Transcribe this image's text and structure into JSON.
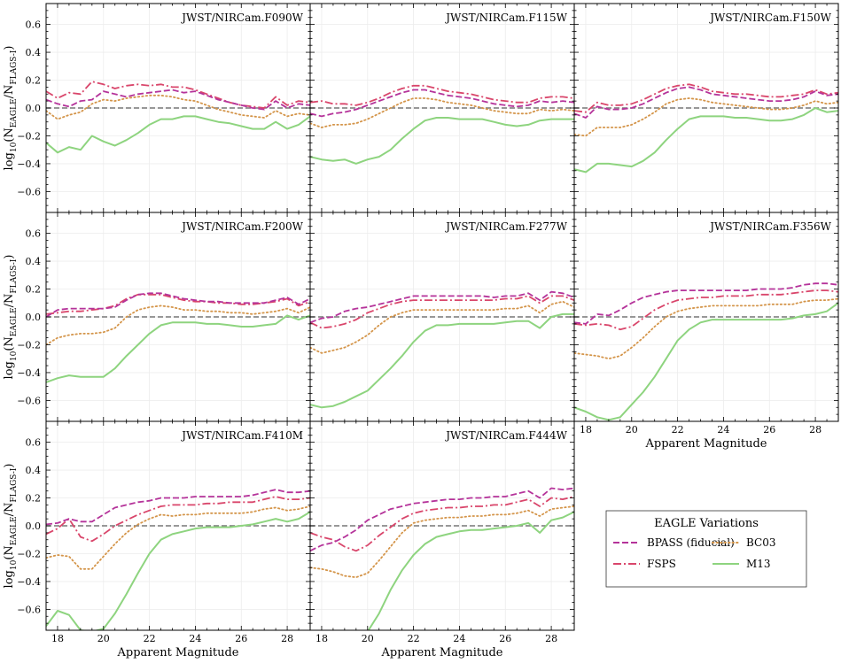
{
  "chart_data": {
    "type": "line",
    "xlabel": "Apparent Magnitude",
    "ylabel_main": "log",
    "ylabel_sub": "10",
    "ylabel_paren": "(N",
    "ylabel_sub1": "EAGLE",
    "ylabel_sep": "/N",
    "ylabel_sub2": "FLAGS-I",
    "ylabel_close": ")",
    "xlim": [
      17.5,
      29.0
    ],
    "ylim": [
      -0.75,
      0.75
    ],
    "xticks": [
      18,
      20,
      22,
      24,
      26,
      28
    ],
    "yticks": [
      -0.6,
      -0.4,
      -0.2,
      0.0,
      0.2,
      0.4,
      0.6
    ],
    "xtick_labels": [
      "18",
      "20",
      "22",
      "24",
      "26",
      "28"
    ],
    "ytick_labels": [
      "−0.6",
      "−0.4",
      "−0.2",
      "0.0",
      "0.2",
      "0.4",
      "0.6"
    ],
    "reference_line": 0.0,
    "legend": {
      "title": "EAGLE Variations",
      "entries": [
        {
          "key": "bpass",
          "label": "BPASS (fiducial)"
        },
        {
          "key": "bc03",
          "label": "BC03"
        },
        {
          "key": "fsps",
          "label": "FSPS"
        },
        {
          "key": "m13",
          "label": "M13"
        }
      ]
    },
    "series_styles": {
      "bpass": {
        "color": "#b5339a",
        "dash": "7,3"
      },
      "fsps": {
        "color": "#d9466b",
        "dash": "9,3,2,3"
      },
      "bc03": {
        "color": "#d4954a",
        "dash": "1.5,3"
      },
      "m13": {
        "color": "#8ed47f",
        "dash": ""
      }
    },
    "x": [
      17.5,
      18.0,
      18.5,
      19.0,
      19.5,
      20.0,
      20.5,
      21.0,
      21.5,
      22.0,
      22.5,
      23.0,
      23.5,
      24.0,
      24.5,
      25.0,
      25.5,
      26.0,
      26.5,
      27.0,
      27.5,
      28.0,
      28.5,
      29.0
    ],
    "panels": [
      {
        "title": "JWST/NIRCam.F090W",
        "bpass": [
          0.06,
          0.03,
          0.01,
          0.05,
          0.06,
          0.12,
          0.1,
          0.08,
          0.1,
          0.11,
          0.12,
          0.13,
          0.11,
          0.12,
          0.09,
          0.06,
          0.04,
          0.02,
          0.0,
          -0.01,
          0.05,
          0.0,
          0.03,
          0.02
        ],
        "fsps": [
          0.12,
          0.07,
          0.11,
          0.1,
          0.19,
          0.17,
          0.14,
          0.16,
          0.17,
          0.16,
          0.17,
          0.15,
          0.15,
          0.13,
          0.1,
          0.07,
          0.04,
          0.02,
          0.01,
          0.0,
          0.08,
          0.02,
          0.05,
          0.04
        ],
        "bc03": [
          -0.02,
          -0.08,
          -0.05,
          -0.03,
          0.03,
          0.06,
          0.05,
          0.07,
          0.08,
          0.09,
          0.09,
          0.08,
          0.06,
          0.05,
          0.02,
          -0.01,
          -0.03,
          -0.05,
          -0.06,
          -0.07,
          -0.02,
          -0.06,
          -0.04,
          -0.05
        ],
        "m13": [
          -0.25,
          -0.32,
          -0.28,
          -0.3,
          -0.2,
          -0.24,
          -0.27,
          -0.23,
          -0.18,
          -0.12,
          -0.08,
          -0.08,
          -0.06,
          -0.06,
          -0.08,
          -0.1,
          -0.11,
          -0.13,
          -0.15,
          -0.15,
          -0.1,
          -0.15,
          -0.12,
          -0.06
        ]
      },
      {
        "title": "JWST/NIRCam.F115W",
        "bpass": [
          -0.04,
          -0.06,
          -0.04,
          -0.03,
          -0.01,
          0.02,
          0.05,
          0.08,
          0.11,
          0.13,
          0.13,
          0.11,
          0.09,
          0.08,
          0.07,
          0.05,
          0.03,
          0.02,
          0.01,
          0.02,
          0.05,
          0.04,
          0.05,
          0.04
        ],
        "fsps": [
          0.04,
          0.05,
          0.03,
          0.03,
          0.02,
          0.04,
          0.07,
          0.11,
          0.14,
          0.16,
          0.16,
          0.14,
          0.12,
          0.11,
          0.1,
          0.08,
          0.06,
          0.05,
          0.04,
          0.04,
          0.07,
          0.08,
          0.08,
          0.07
        ],
        "bc03": [
          -0.11,
          -0.14,
          -0.12,
          -0.12,
          -0.11,
          -0.08,
          -0.04,
          0.0,
          0.04,
          0.07,
          0.07,
          0.06,
          0.04,
          0.03,
          0.02,
          0.0,
          -0.02,
          -0.03,
          -0.04,
          -0.04,
          -0.01,
          -0.02,
          -0.01,
          -0.02
        ],
        "m13": [
          -0.35,
          -0.37,
          -0.38,
          -0.37,
          -0.4,
          -0.37,
          -0.35,
          -0.3,
          -0.22,
          -0.15,
          -0.09,
          -0.07,
          -0.07,
          -0.08,
          -0.08,
          -0.08,
          -0.1,
          -0.12,
          -0.13,
          -0.12,
          -0.09,
          -0.08,
          -0.08,
          -0.08
        ]
      },
      {
        "title": "JWST/NIRCam.F150W",
        "bpass": [
          -0.04,
          -0.07,
          0.01,
          -0.01,
          -0.01,
          0.0,
          0.03,
          0.07,
          0.11,
          0.14,
          0.15,
          0.13,
          0.1,
          0.09,
          0.08,
          0.07,
          0.06,
          0.05,
          0.05,
          0.06,
          0.08,
          0.12,
          0.09,
          0.1
        ],
        "fsps": [
          -0.02,
          -0.03,
          0.04,
          0.02,
          0.02,
          0.03,
          0.06,
          0.1,
          0.14,
          0.16,
          0.17,
          0.15,
          0.12,
          0.11,
          0.1,
          0.1,
          0.09,
          0.08,
          0.08,
          0.09,
          0.1,
          0.13,
          0.1,
          0.11
        ],
        "bc03": [
          -0.19,
          -0.2,
          -0.14,
          -0.14,
          -0.14,
          -0.12,
          -0.08,
          -0.03,
          0.03,
          0.06,
          0.07,
          0.06,
          0.04,
          0.03,
          0.02,
          0.01,
          0.0,
          -0.01,
          -0.01,
          0.0,
          0.02,
          0.05,
          0.03,
          0.04
        ],
        "m13": [
          -0.44,
          -0.46,
          -0.4,
          -0.4,
          -0.41,
          -0.42,
          -0.38,
          -0.32,
          -0.23,
          -0.15,
          -0.08,
          -0.06,
          -0.06,
          -0.06,
          -0.07,
          -0.07,
          -0.08,
          -0.09,
          -0.09,
          -0.08,
          -0.05,
          0.0,
          -0.03,
          -0.02
        ]
      },
      {
        "title": "JWST/NIRCam.F200W",
        "bpass": [
          0.0,
          0.05,
          0.06,
          0.06,
          0.06,
          0.06,
          0.07,
          0.12,
          0.16,
          0.17,
          0.17,
          0.15,
          0.13,
          0.12,
          0.11,
          0.11,
          0.1,
          0.1,
          0.1,
          0.1,
          0.12,
          0.14,
          0.09,
          0.13
        ],
        "fsps": [
          0.02,
          0.03,
          0.04,
          0.04,
          0.05,
          0.06,
          0.08,
          0.13,
          0.16,
          0.16,
          0.16,
          0.14,
          0.12,
          0.11,
          0.11,
          0.1,
          0.1,
          0.09,
          0.09,
          0.1,
          0.11,
          0.13,
          0.08,
          0.11
        ],
        "bc03": [
          -0.2,
          -0.15,
          -0.13,
          -0.12,
          -0.12,
          -0.11,
          -0.08,
          0.0,
          0.05,
          0.07,
          0.08,
          0.07,
          0.05,
          0.05,
          0.04,
          0.04,
          0.03,
          0.03,
          0.02,
          0.03,
          0.04,
          0.06,
          0.03,
          0.07
        ],
        "m13": [
          -0.47,
          -0.44,
          -0.42,
          -0.43,
          -0.43,
          -0.43,
          -0.37,
          -0.28,
          -0.2,
          -0.12,
          -0.06,
          -0.04,
          -0.04,
          -0.04,
          -0.05,
          -0.05,
          -0.06,
          -0.07,
          -0.07,
          -0.06,
          -0.05,
          0.01,
          -0.02,
          0.01
        ]
      },
      {
        "title": "JWST/NIRCam.F277W",
        "bpass": [
          -0.04,
          -0.01,
          0.0,
          0.04,
          0.06,
          0.07,
          0.09,
          0.11,
          0.13,
          0.15,
          0.15,
          0.15,
          0.15,
          0.15,
          0.15,
          0.15,
          0.14,
          0.15,
          0.15,
          0.17,
          0.12,
          0.18,
          0.17,
          0.14
        ],
        "fsps": [
          -0.04,
          -0.08,
          -0.07,
          -0.05,
          -0.02,
          0.03,
          0.06,
          0.09,
          0.11,
          0.12,
          0.12,
          0.12,
          0.12,
          0.12,
          0.12,
          0.12,
          0.12,
          0.13,
          0.13,
          0.15,
          0.1,
          0.15,
          0.15,
          0.12
        ],
        "bc03": [
          -0.22,
          -0.26,
          -0.24,
          -0.22,
          -0.18,
          -0.13,
          -0.06,
          0.0,
          0.03,
          0.05,
          0.05,
          0.05,
          0.05,
          0.05,
          0.05,
          0.05,
          0.05,
          0.06,
          0.06,
          0.08,
          0.03,
          0.09,
          0.11,
          0.07
        ],
        "m13": [
          -0.63,
          -0.65,
          -0.64,
          -0.61,
          -0.57,
          -0.53,
          -0.45,
          -0.37,
          -0.28,
          -0.18,
          -0.1,
          -0.06,
          -0.06,
          -0.05,
          -0.05,
          -0.05,
          -0.05,
          -0.04,
          -0.03,
          -0.03,
          -0.08,
          0.0,
          0.02,
          0.02
        ]
      },
      {
        "title": "JWST/NIRCam.F356W",
        "bpass": [
          -0.04,
          -0.05,
          0.02,
          0.01,
          0.05,
          0.1,
          0.14,
          0.16,
          0.18,
          0.19,
          0.19,
          0.19,
          0.19,
          0.19,
          0.19,
          0.19,
          0.2,
          0.2,
          0.2,
          0.21,
          0.23,
          0.24,
          0.24,
          0.23
        ],
        "fsps": [
          -0.05,
          -0.06,
          -0.05,
          -0.06,
          -0.09,
          -0.07,
          -0.01,
          0.05,
          0.09,
          0.12,
          0.13,
          0.14,
          0.14,
          0.15,
          0.15,
          0.15,
          0.16,
          0.16,
          0.16,
          0.17,
          0.18,
          0.19,
          0.19,
          0.18
        ],
        "bc03": [
          -0.26,
          -0.27,
          -0.28,
          -0.3,
          -0.28,
          -0.22,
          -0.15,
          -0.07,
          0.0,
          0.04,
          0.06,
          0.07,
          0.08,
          0.08,
          0.08,
          0.08,
          0.08,
          0.09,
          0.09,
          0.09,
          0.11,
          0.12,
          0.12,
          0.13
        ],
        "m13": [
          -0.65,
          -0.68,
          -0.72,
          -0.74,
          -0.72,
          -0.63,
          -0.54,
          -0.43,
          -0.3,
          -0.17,
          -0.09,
          -0.04,
          -0.02,
          -0.02,
          -0.02,
          -0.02,
          -0.02,
          -0.02,
          -0.02,
          -0.01,
          0.01,
          0.02,
          0.04,
          0.1
        ]
      },
      {
        "title": "JWST/NIRCam.F410M",
        "bpass": [
          0.01,
          0.02,
          0.05,
          0.03,
          0.03,
          0.08,
          0.13,
          0.15,
          0.17,
          0.18,
          0.2,
          0.2,
          0.2,
          0.21,
          0.21,
          0.21,
          0.21,
          0.21,
          0.22,
          0.24,
          0.26,
          0.24,
          0.24,
          0.25
        ],
        "fsps": [
          -0.06,
          -0.02,
          0.05,
          -0.08,
          -0.11,
          -0.06,
          0.0,
          0.04,
          0.08,
          0.11,
          0.14,
          0.15,
          0.15,
          0.15,
          0.16,
          0.16,
          0.17,
          0.17,
          0.17,
          0.19,
          0.21,
          0.19,
          0.19,
          0.2
        ],
        "bc03": [
          -0.23,
          -0.21,
          -0.22,
          -0.31,
          -0.31,
          -0.22,
          -0.13,
          -0.05,
          0.01,
          0.05,
          0.08,
          0.07,
          0.08,
          0.08,
          0.09,
          0.09,
          0.09,
          0.09,
          0.1,
          0.12,
          0.13,
          0.11,
          0.12,
          0.14
        ],
        "m13": [
          -0.72,
          -0.61,
          -0.64,
          -0.75,
          -0.76,
          -0.74,
          -0.63,
          -0.49,
          -0.34,
          -0.2,
          -0.1,
          -0.06,
          -0.04,
          -0.02,
          -0.01,
          -0.01,
          -0.01,
          0.0,
          0.01,
          0.03,
          0.05,
          0.03,
          0.05,
          0.1
        ]
      },
      {
        "title": "JWST/NIRCam.F444W",
        "bpass": [
          -0.18,
          -0.14,
          -0.12,
          -0.08,
          -0.03,
          0.04,
          0.08,
          0.12,
          0.14,
          0.16,
          0.17,
          0.18,
          0.19,
          0.19,
          0.2,
          0.2,
          0.21,
          0.21,
          0.23,
          0.25,
          0.2,
          0.27,
          0.26,
          0.27
        ],
        "fsps": [
          -0.05,
          -0.08,
          -0.1,
          -0.15,
          -0.18,
          -0.14,
          -0.07,
          -0.01,
          0.05,
          0.09,
          0.11,
          0.12,
          0.13,
          0.13,
          0.14,
          0.14,
          0.15,
          0.15,
          0.17,
          0.19,
          0.14,
          0.2,
          0.19,
          0.21
        ],
        "bc03": [
          -0.3,
          -0.31,
          -0.33,
          -0.36,
          -0.37,
          -0.34,
          -0.25,
          -0.15,
          -0.05,
          0.02,
          0.04,
          0.05,
          0.06,
          0.06,
          0.07,
          0.07,
          0.08,
          0.08,
          0.09,
          0.11,
          0.07,
          0.12,
          0.13,
          0.14
        ],
        "m13": [
          -0.9,
          -0.88,
          -0.86,
          -0.84,
          -0.82,
          -0.76,
          -0.63,
          -0.46,
          -0.32,
          -0.21,
          -0.13,
          -0.08,
          -0.06,
          -0.04,
          -0.03,
          -0.03,
          -0.02,
          -0.01,
          0.0,
          0.02,
          -0.05,
          0.04,
          0.06,
          0.1
        ]
      }
    ]
  }
}
